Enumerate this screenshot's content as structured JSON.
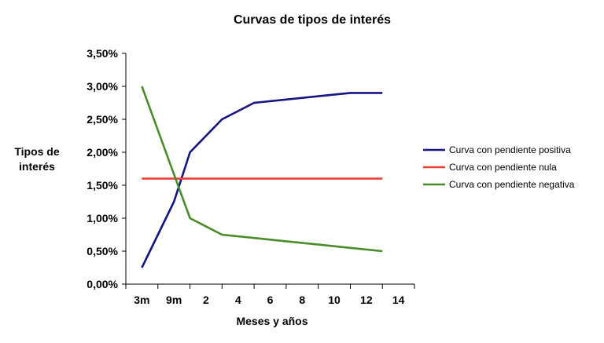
{
  "chart_data": {
    "type": "line",
    "title": "Curvas de tipos de interés",
    "xlabel": "Meses y años",
    "ylabel": [
      "Tipos de",
      "interés"
    ],
    "categories": [
      "3m",
      "9m",
      "2",
      "4",
      "6",
      "8",
      "10",
      "12",
      "14"
    ],
    "yticks": [
      "0,00%",
      "0,50%",
      "1,00%",
      "1,50%",
      "2,00%",
      "2,50%",
      "3,00%",
      "3,50%"
    ],
    "ylim": [
      0,
      3.5
    ],
    "grid": false,
    "legend_position": "right",
    "series": [
      {
        "name": "Curva con pendiente positiva",
        "color": "#141483",
        "x": [
          0,
          1,
          1.5,
          2.5,
          3.5,
          4.5,
          5.5,
          6.5,
          7.5
        ],
        "values": [
          0.25,
          1.25,
          2.0,
          2.5,
          2.75,
          2.8,
          2.85,
          2.9,
          2.9
        ]
      },
      {
        "name": "Curva con pendiente nula",
        "color": "#ef4136",
        "x": [
          0,
          7.5
        ],
        "values": [
          1.6,
          1.6
        ]
      },
      {
        "name": "Curva con pendiente negativa",
        "color": "#4a8c2a",
        "x": [
          0,
          1.5,
          2.5,
          3.5,
          4.5,
          5.5,
          6.5,
          7.5
        ],
        "values": [
          3.0,
          1.0,
          0.75,
          0.7,
          0.65,
          0.6,
          0.55,
          0.5
        ]
      }
    ]
  }
}
